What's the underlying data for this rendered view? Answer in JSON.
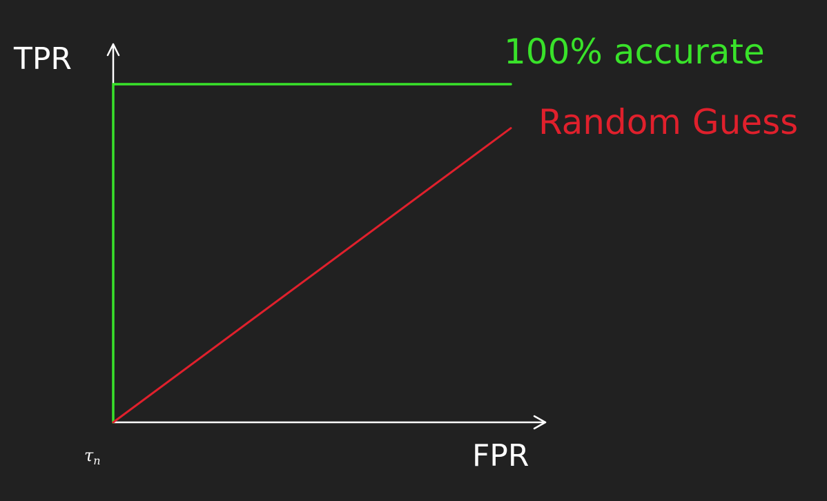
{
  "labels": {
    "y_axis": "TPR",
    "x_axis": "FPR",
    "origin": "τ",
    "origin_subscript": "n",
    "perfect": "100% accurate",
    "random": "Random Guess"
  },
  "colors": {
    "background": "#212121",
    "axes": "#ffffff",
    "perfect": "#39e22a",
    "random": "#e0202c"
  },
  "chart_data": {
    "type": "line",
    "title": "",
    "xlabel": "FPR",
    "ylabel": "TPR",
    "series": [
      {
        "name": "100% accurate",
        "x": [
          0,
          0,
          1
        ],
        "y": [
          0,
          1,
          1
        ]
      },
      {
        "name": "Random Guess",
        "x": [
          0,
          1
        ],
        "y": [
          0,
          0.87
        ]
      }
    ],
    "legend": "inline-right",
    "grid": false
  }
}
